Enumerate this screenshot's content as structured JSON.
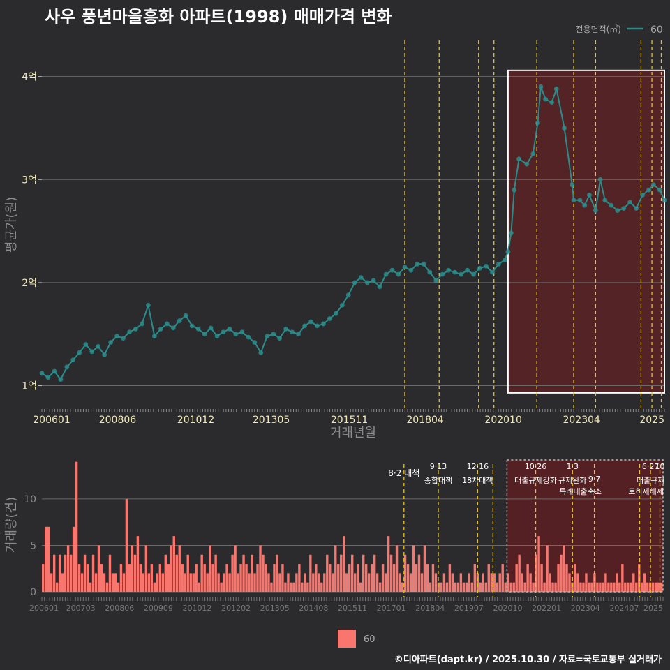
{
  "title": "사우 풍년마을흥화 아파트(1998) 매매가격 변화",
  "footer": "©디아파트(dapt.kr) / 2025.10.30 / 자료=국토교통부 실거래가",
  "colors": {
    "background": "#2b2b2d",
    "line": "#2a8d8b",
    "point": "#2a9a98",
    "bar": "#f8766d",
    "highlight": "#5a2225",
    "policy_line": "#e8c21a",
    "grid": "#6a6a6a"
  },
  "chart_data": [
    {
      "type": "line",
      "name": "price",
      "title": "사우 풍년마을흥화 아파트(1998) 매매가격 변화",
      "xlabel": "거래년월",
      "ylabel": "평균가(원)",
      "legend_title": "전용면적(㎡)",
      "legend_position": "top-right",
      "series_name": "60",
      "x_tick_labels": [
        "200601",
        "200806",
        "201012",
        "201305",
        "201511",
        "201804",
        "202010",
        "202304",
        "2025"
      ],
      "y_ticks": [
        1,
        2,
        3,
        4
      ],
      "y_tick_labels": [
        "1억",
        "2억",
        "3억",
        "4억"
      ],
      "xlim": [
        2006.0,
        2025.9
      ],
      "ylim": [
        0.78,
        4.35
      ],
      "highlight_range": [
        2020.9,
        2025.9
      ],
      "policy_lines": [
        2017.6,
        2018.7,
        2019.96,
        2020.45,
        2021.82,
        2023.0,
        2023.7,
        2025.15,
        2025.5,
        2025.8
      ],
      "points": [
        [
          2006.0,
          1.12
        ],
        [
          2006.2,
          1.08
        ],
        [
          2006.4,
          1.14
        ],
        [
          2006.6,
          1.06
        ],
        [
          2006.8,
          1.18
        ],
        [
          2007.0,
          1.25
        ],
        [
          2007.2,
          1.32
        ],
        [
          2007.4,
          1.4
        ],
        [
          2007.6,
          1.33
        ],
        [
          2007.8,
          1.38
        ],
        [
          2008.0,
          1.3
        ],
        [
          2008.2,
          1.42
        ],
        [
          2008.4,
          1.48
        ],
        [
          2008.6,
          1.46
        ],
        [
          2008.8,
          1.52
        ],
        [
          2009.0,
          1.55
        ],
        [
          2009.2,
          1.6
        ],
        [
          2009.4,
          1.78
        ],
        [
          2009.6,
          1.48
        ],
        [
          2009.8,
          1.55
        ],
        [
          2010.0,
          1.6
        ],
        [
          2010.2,
          1.56
        ],
        [
          2010.4,
          1.63
        ],
        [
          2010.6,
          1.68
        ],
        [
          2010.8,
          1.58
        ],
        [
          2011.0,
          1.55
        ],
        [
          2011.2,
          1.5
        ],
        [
          2011.4,
          1.56
        ],
        [
          2011.6,
          1.48
        ],
        [
          2011.8,
          1.52
        ],
        [
          2012.0,
          1.55
        ],
        [
          2012.2,
          1.5
        ],
        [
          2012.4,
          1.52
        ],
        [
          2012.6,
          1.47
        ],
        [
          2012.8,
          1.42
        ],
        [
          2013.0,
          1.32
        ],
        [
          2013.2,
          1.48
        ],
        [
          2013.4,
          1.5
        ],
        [
          2013.6,
          1.46
        ],
        [
          2013.8,
          1.55
        ],
        [
          2014.0,
          1.52
        ],
        [
          2014.2,
          1.5
        ],
        [
          2014.4,
          1.58
        ],
        [
          2014.6,
          1.62
        ],
        [
          2014.8,
          1.58
        ],
        [
          2015.0,
          1.6
        ],
        [
          2015.2,
          1.65
        ],
        [
          2015.4,
          1.7
        ],
        [
          2015.6,
          1.78
        ],
        [
          2015.8,
          1.88
        ],
        [
          2016.0,
          2.0
        ],
        [
          2016.2,
          2.05
        ],
        [
          2016.4,
          2.0
        ],
        [
          2016.6,
          2.02
        ],
        [
          2016.8,
          1.96
        ],
        [
          2017.0,
          2.08
        ],
        [
          2017.2,
          2.12
        ],
        [
          2017.4,
          2.08
        ],
        [
          2017.6,
          2.15
        ],
        [
          2017.8,
          2.12
        ],
        [
          2018.0,
          2.18
        ],
        [
          2018.2,
          2.18
        ],
        [
          2018.4,
          2.1
        ],
        [
          2018.6,
          2.02
        ],
        [
          2018.8,
          2.08
        ],
        [
          2019.0,
          2.12
        ],
        [
          2019.2,
          2.1
        ],
        [
          2019.4,
          2.08
        ],
        [
          2019.6,
          2.12
        ],
        [
          2019.8,
          2.08
        ],
        [
          2020.0,
          2.14
        ],
        [
          2020.2,
          2.16
        ],
        [
          2020.4,
          2.1
        ],
        [
          2020.6,
          2.18
        ],
        [
          2020.8,
          2.22
        ],
        [
          2020.9,
          2.3
        ],
        [
          2021.0,
          2.48
        ],
        [
          2021.1,
          2.9
        ],
        [
          2021.25,
          3.2
        ],
        [
          2021.5,
          3.15
        ],
        [
          2021.7,
          3.25
        ],
        [
          2021.85,
          3.55
        ],
        [
          2021.95,
          3.9
        ],
        [
          2022.1,
          3.78
        ],
        [
          2022.3,
          3.75
        ],
        [
          2022.45,
          3.88
        ],
        [
          2022.7,
          3.5
        ],
        [
          2022.95,
          2.95
        ],
        [
          2023.0,
          2.8
        ],
        [
          2023.2,
          2.8
        ],
        [
          2023.35,
          2.75
        ],
        [
          2023.5,
          2.85
        ],
        [
          2023.7,
          2.7
        ],
        [
          2023.85,
          3.0
        ],
        [
          2024.0,
          2.8
        ],
        [
          2024.2,
          2.75
        ],
        [
          2024.4,
          2.7
        ],
        [
          2024.6,
          2.72
        ],
        [
          2024.8,
          2.78
        ],
        [
          2025.0,
          2.72
        ],
        [
          2025.2,
          2.85
        ],
        [
          2025.4,
          2.9
        ],
        [
          2025.55,
          2.95
        ],
        [
          2025.75,
          2.9
        ],
        [
          2025.9,
          2.8
        ]
      ]
    },
    {
      "type": "bar",
      "name": "volume",
      "xlabel": "",
      "ylabel": "거래량(건)",
      "series_name": "60",
      "x_tick_labels": [
        "200601",
        "200703",
        "200806",
        "200909",
        "201012",
        "201202",
        "201305",
        "201408",
        "201511",
        "201701",
        "201804",
        "201907",
        "202010",
        "202201",
        "202304",
        "202407",
        "2025"
      ],
      "y_ticks": [
        0,
        5,
        10
      ],
      "ylim": [
        0,
        14.5
      ],
      "annotations": [
        {
          "date": "8·2 대책",
          "x": 2017.6,
          "row": 2
        },
        {
          "date": "9·13",
          "text": "종합대책",
          "x": 2018.7,
          "row": 1
        },
        {
          "date": "12·16",
          "text": "18차대책",
          "x": 2019.96,
          "row": 1
        },
        {
          "date": "10·26",
          "text": "대출규제강화",
          "x": 2021.82,
          "row": 1
        },
        {
          "date": "1·3",
          "text": "규제완화",
          "x": 2023.0,
          "row": 1
        },
        {
          "date": "",
          "text": "9·7",
          "x": 2023.7,
          "row": 2
        },
        {
          "date": "",
          "text": "특례대출축소",
          "x": 2023.7,
          "row": 3
        },
        {
          "date": "6·27",
          "text": "대출규제",
          "x": 2025.5,
          "row": 1
        },
        {
          "date": "10",
          "text": "토허제해제",
          "x": 2025.8,
          "row": 3
        }
      ],
      "values": [
        3,
        7,
        7,
        2,
        4,
        1,
        4,
        2,
        4,
        5,
        4,
        7,
        14,
        3,
        2,
        4,
        3,
        1,
        4,
        2,
        5,
        3,
        2,
        1,
        4,
        2,
        2,
        1,
        3,
        2,
        10,
        3,
        5,
        4,
        6,
        3,
        2,
        5,
        2,
        3,
        1,
        2,
        3,
        2,
        4,
        3,
        5,
        6,
        4,
        5,
        3,
        2,
        4,
        2,
        2,
        3,
        1,
        4,
        3,
        2,
        5,
        3,
        4,
        2,
        1,
        2,
        3,
        2,
        4,
        5,
        2,
        3,
        4,
        3,
        2,
        4,
        2,
        3,
        5,
        4,
        3,
        2,
        1,
        3,
        4,
        2,
        3,
        1,
        2,
        1,
        1,
        2,
        3,
        1,
        2,
        1,
        4,
        2,
        3,
        2,
        1,
        2,
        4,
        3,
        2,
        5,
        3,
        4,
        6,
        2,
        3,
        4,
        2,
        3,
        1,
        4,
        3,
        2,
        3,
        4,
        2,
        1,
        3,
        2,
        6,
        4,
        3,
        5,
        2,
        1,
        4,
        3,
        2,
        5,
        3,
        4,
        2,
        5,
        3,
        1,
        3,
        2,
        1,
        1,
        2,
        1,
        3,
        2,
        1,
        1,
        2,
        1,
        1,
        2,
        1,
        3,
        2,
        1,
        2,
        1,
        3,
        2,
        2,
        1,
        2,
        3,
        1,
        2,
        1,
        1,
        3,
        4,
        2,
        1,
        3,
        2,
        1,
        4,
        6,
        3,
        1,
        5,
        2,
        1,
        1,
        3,
        4,
        5,
        3,
        2,
        1,
        3,
        2,
        1,
        1,
        2,
        1,
        1,
        2,
        1,
        1,
        1,
        2,
        1,
        1,
        1,
        2,
        1,
        3,
        1,
        1,
        1,
        2,
        1,
        3,
        1,
        2,
        1,
        1,
        1,
        1,
        1,
        1
      ]
    }
  ]
}
